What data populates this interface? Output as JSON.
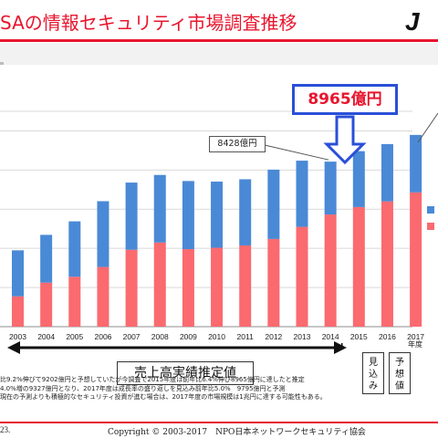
{
  "header": {
    "title": "SAの情報セキュリティ市場調査推移",
    "logo_text": "J"
  },
  "callouts": {
    "small": "8428億円",
    "big": "8965億円",
    "results_label": "売上高実績推定値",
    "estimate_label": [
      "見",
      "込",
      "み"
    ],
    "forecast_label": [
      "予",
      "想",
      "値"
    ]
  },
  "notes": [
    "比9.2%伸びて9202億円と予想していたが今調査で2015年度は前年比6.4%伸び8965億円に達したと推定",
    "4.0%増の9327億円となり、2017年度は成長率の盛り返しを見込み前年比5.0%　9795億円と予測",
    "現在の予測よりも積極的なセキュリティ投資が進む場合は、2017年度の市場規模は1兆円に達する可能性もある。"
  ],
  "footer": {
    "page": "23.",
    "copyright": "Copyright © 2003-2017　NPO日本ネットワークセキュリティ協会"
  },
  "colors": {
    "blue_segment": "#4a89d6",
    "red_segment": "#fa6a6f",
    "accent_red": "#e8152d",
    "accent_blue": "#2a4fd8"
  },
  "chart_data": {
    "type": "bar",
    "stacked": true,
    "categories": [
      "2003",
      "2004",
      "2005",
      "2006",
      "2007",
      "2008",
      "2009",
      "2010",
      "2011",
      "2012",
      "2013",
      "2014",
      "2015",
      "2016",
      "2017"
    ],
    "x_unit_label": "年度",
    "series": [
      {
        "color": "#fa6a6f",
        "values": [
          1550,
          2250,
          2550,
          3050,
          3930,
          4300,
          3960,
          4030,
          4150,
          4480,
          5100,
          5730,
          6110,
          6400,
          6860
        ]
      },
      {
        "color": "#4a89d6",
        "values": [
          2350,
          2440,
          2830,
          3360,
          3430,
          3450,
          3480,
          3380,
          3380,
          3540,
          3380,
          2700,
          2855,
          2927,
          2935
        ]
      }
    ],
    "totals": {
      "2014": 8428,
      "2015": 8965,
      "2016": 9327,
      "2017": 9795
    },
    "ylim": [
      0,
      11000
    ],
    "grid": true,
    "legend": "right, partially cropped",
    "annotations": [
      "8428億円",
      "8965億円",
      "売上高実績推定値",
      "見込み",
      "予想値"
    ]
  }
}
